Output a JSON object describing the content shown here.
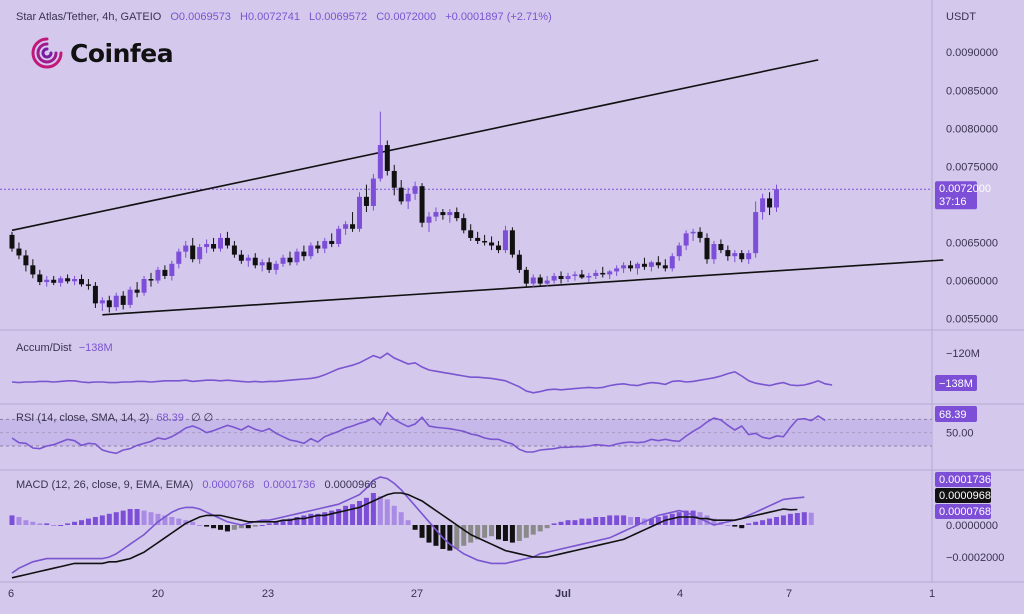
{
  "header": {
    "symbol": "Star Atlas/Tether, 4h, GATEIO",
    "open": "O0.0069573",
    "high": "H0.0072741",
    "low": "L0.0069572",
    "close": "C0.0072000",
    "change": "+0.0001897 (+2.71%)",
    "currency": "USDT"
  },
  "logo": {
    "text": "Coinfea",
    "icon": "coinfea-swirl-icon"
  },
  "price_tag": {
    "value": "0.0072000",
    "countdown": "37:16"
  },
  "indicators": {
    "accum": {
      "label": "Accum/Dist",
      "value": "−138M",
      "axis_top": "−120M",
      "tag": "−138M"
    },
    "rsi": {
      "label": "RSI (14, close, SMA, 14, 2)",
      "value": "68.39",
      "extra": "∅  ∅",
      "tag": "68.39",
      "axis_mid": "50.00"
    },
    "macd": {
      "label": "MACD (12, 26, close, 9, EMA, EMA)",
      "v1": "0.0000768",
      "v2": "0.0001736",
      "v3": "0.0000968",
      "tags": [
        "0.0001736",
        "0.0000968",
        "0.0000768"
      ],
      "axis": [
        "0.0000000",
        "−0.0002000"
      ]
    }
  },
  "colors": {
    "background": "#d4c8ec",
    "up": "#7d4fd8",
    "down": "#111111",
    "line": "#7a55d0",
    "accent_tag": "#7c4fd6"
  },
  "chart_data": {
    "type": "candlestick",
    "price_axis": [
      "0.0090000",
      "0.0085000",
      "0.0080000",
      "0.0075000",
      "0.0065000",
      "0.0060000",
      "0.0055000"
    ],
    "x_labels": [
      "6",
      "20",
      "23",
      "27",
      "Jul",
      "4",
      "7",
      "1"
    ],
    "ylim": [
      0.00535,
      0.00945
    ],
    "current_price": 0.0072,
    "trendlines": [
      {
        "name": "upper",
        "from": {
          "bar": 0,
          "price": 0.00666
        },
        "to": {
          "bar": 116,
          "price": 0.0089
        }
      },
      {
        "name": "lower",
        "from": {
          "bar": 13,
          "price": 0.00555
        },
        "to": {
          "bar": 134,
          "price": 0.00627
        }
      }
    ],
    "candles": [
      [
        0.0066,
        0.00664,
        0.00638,
        0.00642
      ],
      [
        0.00642,
        0.0065,
        0.00628,
        0.00633
      ],
      [
        0.00633,
        0.0064,
        0.00612,
        0.0062
      ],
      [
        0.0062,
        0.00628,
        0.00603,
        0.00608
      ],
      [
        0.00608,
        0.00614,
        0.00594,
        0.00598
      ],
      [
        0.00598,
        0.00606,
        0.00592,
        0.00601
      ],
      [
        0.00601,
        0.00606,
        0.00594,
        0.00597
      ],
      [
        0.00597,
        0.00606,
        0.00592,
        0.00603
      ],
      [
        0.00603,
        0.00608,
        0.00596,
        0.00599
      ],
      [
        0.00599,
        0.00606,
        0.00594,
        0.00602
      ],
      [
        0.00602,
        0.00608,
        0.00592,
        0.00595
      ],
      [
        0.00595,
        0.00602,
        0.00588,
        0.00593
      ],
      [
        0.00593,
        0.00598,
        0.00564,
        0.0057
      ],
      [
        0.0057,
        0.00578,
        0.0056,
        0.00574
      ],
      [
        0.00574,
        0.0058,
        0.00558,
        0.00565
      ],
      [
        0.00565,
        0.00584,
        0.0056,
        0.0058
      ],
      [
        0.0058,
        0.00586,
        0.00562,
        0.00568
      ],
      [
        0.00568,
        0.00592,
        0.00564,
        0.00588
      ],
      [
        0.00588,
        0.00598,
        0.00578,
        0.00584
      ],
      [
        0.00584,
        0.00606,
        0.0058,
        0.00602
      ],
      [
        0.00602,
        0.0061,
        0.00592,
        0.006
      ],
      [
        0.006,
        0.00618,
        0.00596,
        0.00614
      ],
      [
        0.00614,
        0.0062,
        0.00602,
        0.00606
      ],
      [
        0.00606,
        0.00626,
        0.006,
        0.00622
      ],
      [
        0.00622,
        0.00642,
        0.00616,
        0.00638
      ],
      [
        0.00638,
        0.00652,
        0.0063,
        0.00646
      ],
      [
        0.00646,
        0.00656,
        0.00624,
        0.00628
      ],
      [
        0.00628,
        0.00648,
        0.00622,
        0.00644
      ],
      [
        0.00644,
        0.00654,
        0.00636,
        0.00648
      ],
      [
        0.00648,
        0.00656,
        0.00638,
        0.00642
      ],
      [
        0.00642,
        0.00662,
        0.00638,
        0.00656
      ],
      [
        0.00656,
        0.00664,
        0.00642,
        0.00646
      ],
      [
        0.00646,
        0.00652,
        0.0063,
        0.00634
      ],
      [
        0.00634,
        0.0064,
        0.00622,
        0.00626
      ],
      [
        0.00626,
        0.00634,
        0.00618,
        0.0063
      ],
      [
        0.0063,
        0.00636,
        0.00616,
        0.0062
      ],
      [
        0.0062,
        0.00628,
        0.00612,
        0.00624
      ],
      [
        0.00624,
        0.0063,
        0.0061,
        0.00614
      ],
      [
        0.00614,
        0.00626,
        0.00608,
        0.00622
      ],
      [
        0.00622,
        0.00634,
        0.00618,
        0.0063
      ],
      [
        0.0063,
        0.00638,
        0.0062,
        0.00624
      ],
      [
        0.00624,
        0.00642,
        0.0062,
        0.00638
      ],
      [
        0.00638,
        0.00646,
        0.00626,
        0.00632
      ],
      [
        0.00632,
        0.0065,
        0.00628,
        0.00646
      ],
      [
        0.00646,
        0.00652,
        0.00636,
        0.00642
      ],
      [
        0.00642,
        0.00656,
        0.00636,
        0.00652
      ],
      [
        0.00652,
        0.00662,
        0.00644,
        0.00648
      ],
      [
        0.00648,
        0.00672,
        0.00644,
        0.00668
      ],
      [
        0.00668,
        0.00678,
        0.0066,
        0.00674
      ],
      [
        0.00674,
        0.0069,
        0.00664,
        0.00668
      ],
      [
        0.00668,
        0.00716,
        0.00664,
        0.0071
      ],
      [
        0.0071,
        0.00726,
        0.0069,
        0.00698
      ],
      [
        0.00698,
        0.0074,
        0.00692,
        0.00734
      ],
      [
        0.00734,
        0.00822,
        0.0073,
        0.00778
      ],
      [
        0.00778,
        0.00784,
        0.00738,
        0.00744
      ],
      [
        0.00744,
        0.00752,
        0.00712,
        0.00722
      ],
      [
        0.00722,
        0.00732,
        0.007,
        0.00704
      ],
      [
        0.00704,
        0.00722,
        0.00694,
        0.00714
      ],
      [
        0.00714,
        0.0073,
        0.00706,
        0.00724
      ],
      [
        0.00724,
        0.00728,
        0.0067,
        0.00676
      ],
      [
        0.00676,
        0.0069,
        0.00664,
        0.00684
      ],
      [
        0.00684,
        0.00696,
        0.00678,
        0.0069
      ],
      [
        0.0069,
        0.00694,
        0.0068,
        0.00686
      ],
      [
        0.00686,
        0.00694,
        0.00676,
        0.0069
      ],
      [
        0.0069,
        0.00696,
        0.00678,
        0.00682
      ],
      [
        0.00682,
        0.00688,
        0.00662,
        0.00666
      ],
      [
        0.00666,
        0.00674,
        0.00652,
        0.00656
      ],
      [
        0.00656,
        0.00664,
        0.00648,
        0.00652
      ],
      [
        0.00652,
        0.0066,
        0.00646,
        0.0065
      ],
      [
        0.0065,
        0.00658,
        0.0064,
        0.00646
      ],
      [
        0.00646,
        0.00652,
        0.00636,
        0.0064
      ],
      [
        0.0064,
        0.00672,
        0.00636,
        0.00666
      ],
      [
        0.00666,
        0.0067,
        0.0063,
        0.00634
      ],
      [
        0.00634,
        0.0064,
        0.0061,
        0.00614
      ],
      [
        0.00614,
        0.00618,
        0.00592,
        0.00596
      ],
      [
        0.00596,
        0.00608,
        0.0059,
        0.00604
      ],
      [
        0.00604,
        0.00608,
        0.00592,
        0.00596
      ],
      [
        0.00596,
        0.00606,
        0.00592,
        0.006
      ],
      [
        0.006,
        0.0061,
        0.00596,
        0.00606
      ],
      [
        0.00606,
        0.00612,
        0.00596,
        0.00602
      ],
      [
        0.00602,
        0.0061,
        0.00598,
        0.00606
      ],
      [
        0.00606,
        0.00612,
        0.006,
        0.00608
      ],
      [
        0.00608,
        0.00614,
        0.00602,
        0.00604
      ],
      [
        0.00604,
        0.0061,
        0.00598,
        0.00606
      ],
      [
        0.00606,
        0.00614,
        0.00602,
        0.0061
      ],
      [
        0.0061,
        0.00618,
        0.00604,
        0.00608
      ],
      [
        0.00608,
        0.00614,
        0.00602,
        0.00612
      ],
      [
        0.00612,
        0.0062,
        0.00606,
        0.00616
      ],
      [
        0.00616,
        0.00624,
        0.0061,
        0.0062
      ],
      [
        0.0062,
        0.00626,
        0.00612,
        0.00616
      ],
      [
        0.00616,
        0.00624,
        0.00608,
        0.00622
      ],
      [
        0.00622,
        0.0063,
        0.00614,
        0.00618
      ],
      [
        0.00618,
        0.00626,
        0.00612,
        0.00624
      ],
      [
        0.00624,
        0.00632,
        0.00616,
        0.0062
      ],
      [
        0.0062,
        0.00628,
        0.00612,
        0.00616
      ],
      [
        0.00616,
        0.00636,
        0.00612,
        0.00632
      ],
      [
        0.00632,
        0.0065,
        0.00626,
        0.00646
      ],
      [
        0.00646,
        0.00666,
        0.0064,
        0.00662
      ],
      [
        0.00662,
        0.00668,
        0.00652,
        0.00664
      ],
      [
        0.00664,
        0.0067,
        0.0065,
        0.00656
      ],
      [
        0.00656,
        0.00662,
        0.00622,
        0.00628
      ],
      [
        0.00628,
        0.00652,
        0.00622,
        0.00648
      ],
      [
        0.00648,
        0.00654,
        0.00636,
        0.0064
      ],
      [
        0.0064,
        0.00646,
        0.00626,
        0.00632
      ],
      [
        0.00632,
        0.0064,
        0.00624,
        0.00636
      ],
      [
        0.00636,
        0.0064,
        0.00624,
        0.00628
      ],
      [
        0.00628,
        0.0064,
        0.00622,
        0.00636
      ],
      [
        0.00636,
        0.00704,
        0.0063,
        0.0069
      ],
      [
        0.0069,
        0.00714,
        0.0068,
        0.00708
      ],
      [
        0.00708,
        0.00716,
        0.00686,
        0.00696
      ],
      [
        0.00696,
        0.00726,
        0.0069,
        0.0072
      ]
    ],
    "accum_dist": [
      0.3,
      0.29,
      0.3,
      0.3,
      0.31,
      0.31,
      0.3,
      0.31,
      0.32,
      0.32,
      0.3,
      0.29,
      0.3,
      0.3,
      0.29,
      0.29,
      0.3,
      0.3,
      0.31,
      0.31,
      0.3,
      0.31,
      0.32,
      0.32,
      0.32,
      0.33,
      0.31,
      0.32,
      0.33,
      0.33,
      0.32,
      0.33,
      0.32,
      0.31,
      0.3,
      0.31,
      0.3,
      0.31,
      0.31,
      0.32,
      0.33,
      0.34,
      0.35,
      0.36,
      0.38,
      0.42,
      0.47,
      0.52,
      0.55,
      0.58,
      0.62,
      0.68,
      0.74,
      0.7,
      0.78,
      0.7,
      0.65,
      0.6,
      0.62,
      0.55,
      0.5,
      0.48,
      0.46,
      0.44,
      0.42,
      0.4,
      0.38,
      0.38,
      0.37,
      0.36,
      0.34,
      0.32,
      0.27,
      0.22,
      0.15,
      0.12,
      0.14,
      0.17,
      0.18,
      0.17,
      0.18,
      0.19,
      0.2,
      0.21,
      0.2,
      0.21,
      0.24,
      0.26,
      0.27,
      0.25,
      0.24,
      0.27,
      0.29,
      0.28,
      0.26,
      0.31,
      0.32,
      0.3,
      0.31,
      0.33,
      0.35,
      0.37,
      0.4,
      0.44,
      0.47,
      0.4,
      0.32,
      0.28,
      0.26,
      0.24,
      0.27,
      0.29,
      0.25,
      0.24,
      0.25,
      0.28,
      0.32,
      0.27,
      0.25
    ],
    "rsi": [
      42,
      35,
      34,
      27,
      26,
      30,
      32,
      36,
      40,
      38,
      31,
      34,
      33,
      24,
      21,
      19,
      24,
      26,
      31,
      34,
      37,
      42,
      40,
      44,
      50,
      57,
      60,
      56,
      50,
      53,
      57,
      61,
      58,
      54,
      60,
      55,
      52,
      56,
      49,
      44,
      39,
      37,
      34,
      41,
      36,
      44,
      48,
      52,
      57,
      60,
      64,
      67,
      72,
      62,
      80,
      70,
      64,
      59,
      63,
      73,
      60,
      58,
      57,
      56,
      54,
      52,
      48,
      46,
      42,
      40,
      40,
      36,
      33,
      25,
      21,
      21,
      24,
      25,
      26,
      28,
      28,
      29,
      29,
      30,
      32,
      31,
      30,
      33,
      35,
      36,
      35,
      36,
      40,
      38,
      40,
      38,
      37,
      45,
      52,
      58,
      66,
      72,
      69,
      61,
      54,
      60,
      47,
      49,
      43,
      41,
      45,
      44,
      58,
      70,
      71,
      68,
      75,
      68.4
    ],
    "macd_hist": [
      6e-05,
      5e-05,
      3e-05,
      2e-05,
      1e-05,
      1e-05,
      0.0,
      0.0,
      1e-05,
      2e-05,
      3e-05,
      4e-05,
      5e-05,
      6e-05,
      7e-05,
      8e-05,
      9e-05,
      0.0001,
      0.0001,
      9e-05,
      8e-05,
      7e-05,
      6e-05,
      5e-05,
      4e-05,
      3e-05,
      2e-05,
      0.0,
      -1e-05,
      -2e-05,
      -3e-05,
      -4e-05,
      -3e-05,
      -2e-05,
      -2e-05,
      -1e-05,
      0.0,
      1e-05,
      2e-05,
      3e-05,
      4e-05,
      5e-05,
      6e-05,
      7e-05,
      7e-05,
      8e-05,
      9e-05,
      0.0001,
      0.00012,
      0.00013,
      0.00015,
      0.00017,
      0.0002,
      0.00018,
      0.00016,
      0.00012,
      8e-05,
      3e-05,
      -3e-05,
      -8e-05,
      -0.00011,
      -0.00013,
      -0.00015,
      -0.00016,
      -0.00015,
      -0.00013,
      -0.00011,
      -9e-05,
      -8e-05,
      -7e-05,
      -9e-05,
      -0.0001,
      -0.00011,
      -0.0001,
      -8e-05,
      -6e-05,
      -4e-05,
      -2e-05,
      1e-05,
      2e-05,
      3e-05,
      3e-05,
      4e-05,
      4e-05,
      5e-05,
      5e-05,
      6e-05,
      6e-05,
      6e-05,
      5e-05,
      5e-05,
      4e-05,
      4e-05,
      5e-05,
      6e-05,
      7e-05,
      8e-05,
      9e-05,
      9e-05,
      8e-05,
      6e-05,
      4e-05,
      2e-05,
      0.0,
      -1e-05,
      -2e-05,
      1e-05,
      2e-05,
      3e-05,
      4e-05,
      5e-05,
      6e-05,
      7e-05,
      7.5e-05,
      8e-05,
      7.68e-05
    ],
    "macd_line": [
      -0.0003,
      -0.00027,
      -0.00025,
      -0.00023,
      -0.00022,
      -0.00021,
      -0.00021,
      -0.00021,
      -0.00021,
      -0.00021,
      -0.00021,
      -0.00021,
      -0.00021,
      -0.00021,
      -0.0002,
      -0.00018,
      -0.00015,
      -0.00012,
      -9e-05,
      -6e-05,
      -2e-05,
      2e-05,
      5e-05,
      8e-05,
      0.0001,
      0.00011,
      0.00011,
      0.0001,
      8e-05,
      6e-05,
      4e-05,
      2e-05,
      1e-05,
      0.0,
      1e-05,
      2e-05,
      3e-05,
      3e-05,
      4e-05,
      5e-05,
      6e-05,
      7e-05,
      8e-05,
      9e-05,
      0.0001,
      0.00011,
      0.00012,
      0.00013,
      0.00015,
      0.00017,
      0.00019,
      0.00023,
      0.00028,
      0.0003,
      0.00029,
      0.00026,
      0.00022,
      0.00017,
      0.00012,
      7e-05,
      2e-05,
      -3e-05,
      -8e-05,
      -0.00012,
      -0.00015,
      -0.00018,
      -0.0002,
      -0.00022,
      -0.00023,
      -0.00024,
      -0.00024,
      -0.00024,
      -0.00023,
      -0.00022,
      -0.00021,
      -0.0002,
      -0.00018,
      -0.00017,
      -0.00016,
      -0.00015,
      -0.00014,
      -0.00013,
      -0.00012,
      -0.00011,
      -0.0001,
      -9e-05,
      -8e-05,
      -6e-05,
      -4e-05,
      -2e-05,
      0.0,
      2e-05,
      4e-05,
      6e-05,
      7e-05,
      8e-05,
      9e-05,
      8e-05,
      6e-05,
      4e-05,
      2e-05,
      0.0,
      1e-05,
      2e-05,
      3e-05,
      4e-05,
      6e-05,
      8e-05,
      0.0001,
      0.00012,
      0.00014,
      0.00016,
      0.000165,
      0.00017,
      0.0001736
    ],
    "signal_line": [
      -0.00033,
      -0.00032,
      -0.00031,
      -0.0003,
      -0.00029,
      -0.00028,
      -0.00027,
      -0.00026,
      -0.00025,
      -0.00024,
      -0.00024,
      -0.00024,
      -0.00024,
      -0.00024,
      -0.00023,
      -0.00023,
      -0.00022,
      -0.00021,
      -0.00019,
      -0.00017,
      -0.00014,
      -0.00011,
      -8e-05,
      -5e-05,
      -2e-05,
      1e-05,
      3e-05,
      5e-05,
      6e-05,
      6e-05,
      6e-05,
      5e-05,
      4e-05,
      3e-05,
      2e-05,
      2e-05,
      2e-05,
      2e-05,
      2e-05,
      3e-05,
      3e-05,
      4e-05,
      4e-05,
      5e-05,
      6e-05,
      6e-05,
      7e-05,
      8e-05,
      9e-05,
      0.0001,
      0.00011,
      0.00013,
      0.00015,
      0.00017,
      0.00019,
      0.0002,
      0.0002,
      0.00019,
      0.00017,
      0.00015,
      0.00012,
      9e-05,
      6e-05,
      3e-05,
      0.0,
      -3e-05,
      -6e-05,
      -8e-05,
      -0.0001,
      -0.00012,
      -0.00014,
      -0.00016,
      -0.00017,
      -0.00018,
      -0.00019,
      -0.0002,
      -0.0002,
      -0.0002,
      -0.00019,
      -0.00018,
      -0.00017,
      -0.00016,
      -0.00015,
      -0.00014,
      -0.00013,
      -0.00012,
      -0.00011,
      -0.0001,
      -9e-05,
      -7e-05,
      -5e-05,
      -3e-05,
      -1e-05,
      1e-05,
      3e-05,
      4e-05,
      5e-05,
      5e-05,
      5e-05,
      4e-05,
      4e-05,
      3e-05,
      3e-05,
      3e-05,
      3e-05,
      4e-05,
      5e-05,
      6e-05,
      7e-05,
      8e-05,
      9e-05,
      0.0001,
      9.5e-05,
      9.68e-05
    ]
  }
}
